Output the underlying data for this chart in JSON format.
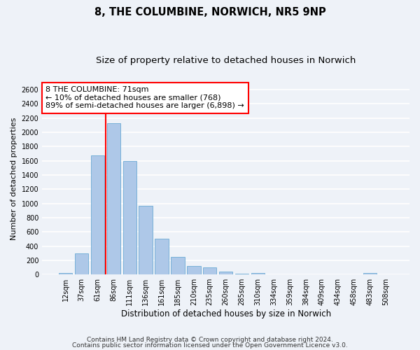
{
  "title1": "8, THE COLUMBINE, NORWICH, NR5 9NP",
  "title2": "Size of property relative to detached houses in Norwich",
  "xlabel": "Distribution of detached houses by size in Norwich",
  "ylabel": "Number of detached properties",
  "categories": [
    "12sqm",
    "37sqm",
    "61sqm",
    "86sqm",
    "111sqm",
    "136sqm",
    "161sqm",
    "185sqm",
    "210sqm",
    "235sqm",
    "260sqm",
    "285sqm",
    "310sqm",
    "334sqm",
    "359sqm",
    "384sqm",
    "409sqm",
    "434sqm",
    "458sqm",
    "483sqm",
    "508sqm"
  ],
  "values": [
    20,
    300,
    1670,
    2130,
    1595,
    970,
    500,
    250,
    120,
    100,
    40,
    12,
    20,
    5,
    5,
    5,
    2,
    2,
    2,
    20,
    2
  ],
  "bar_color": "#aec8e8",
  "bar_edge_color": "#6aaad4",
  "vline_x_idx": 2.5,
  "vline_color": "red",
  "annotation_text": "8 THE COLUMBINE: 71sqm\n← 10% of detached houses are smaller (768)\n89% of semi-detached houses are larger (6,898) →",
  "annotation_box_color": "white",
  "annotation_box_edge_color": "red",
  "ylim": [
    0,
    2700
  ],
  "yticks": [
    0,
    200,
    400,
    600,
    800,
    1000,
    1200,
    1400,
    1600,
    1800,
    2000,
    2200,
    2400,
    2600
  ],
  "footnote1": "Contains HM Land Registry data © Crown copyright and database right 2024.",
  "footnote2": "Contains public sector information licensed under the Open Government Licence v3.0.",
  "bg_color": "#eef2f8",
  "grid_color": "white",
  "title1_fontsize": 10.5,
  "title2_fontsize": 9.5,
  "xlabel_fontsize": 8.5,
  "ylabel_fontsize": 8,
  "tick_fontsize": 7,
  "annotation_fontsize": 8,
  "footnote_fontsize": 6.5
}
